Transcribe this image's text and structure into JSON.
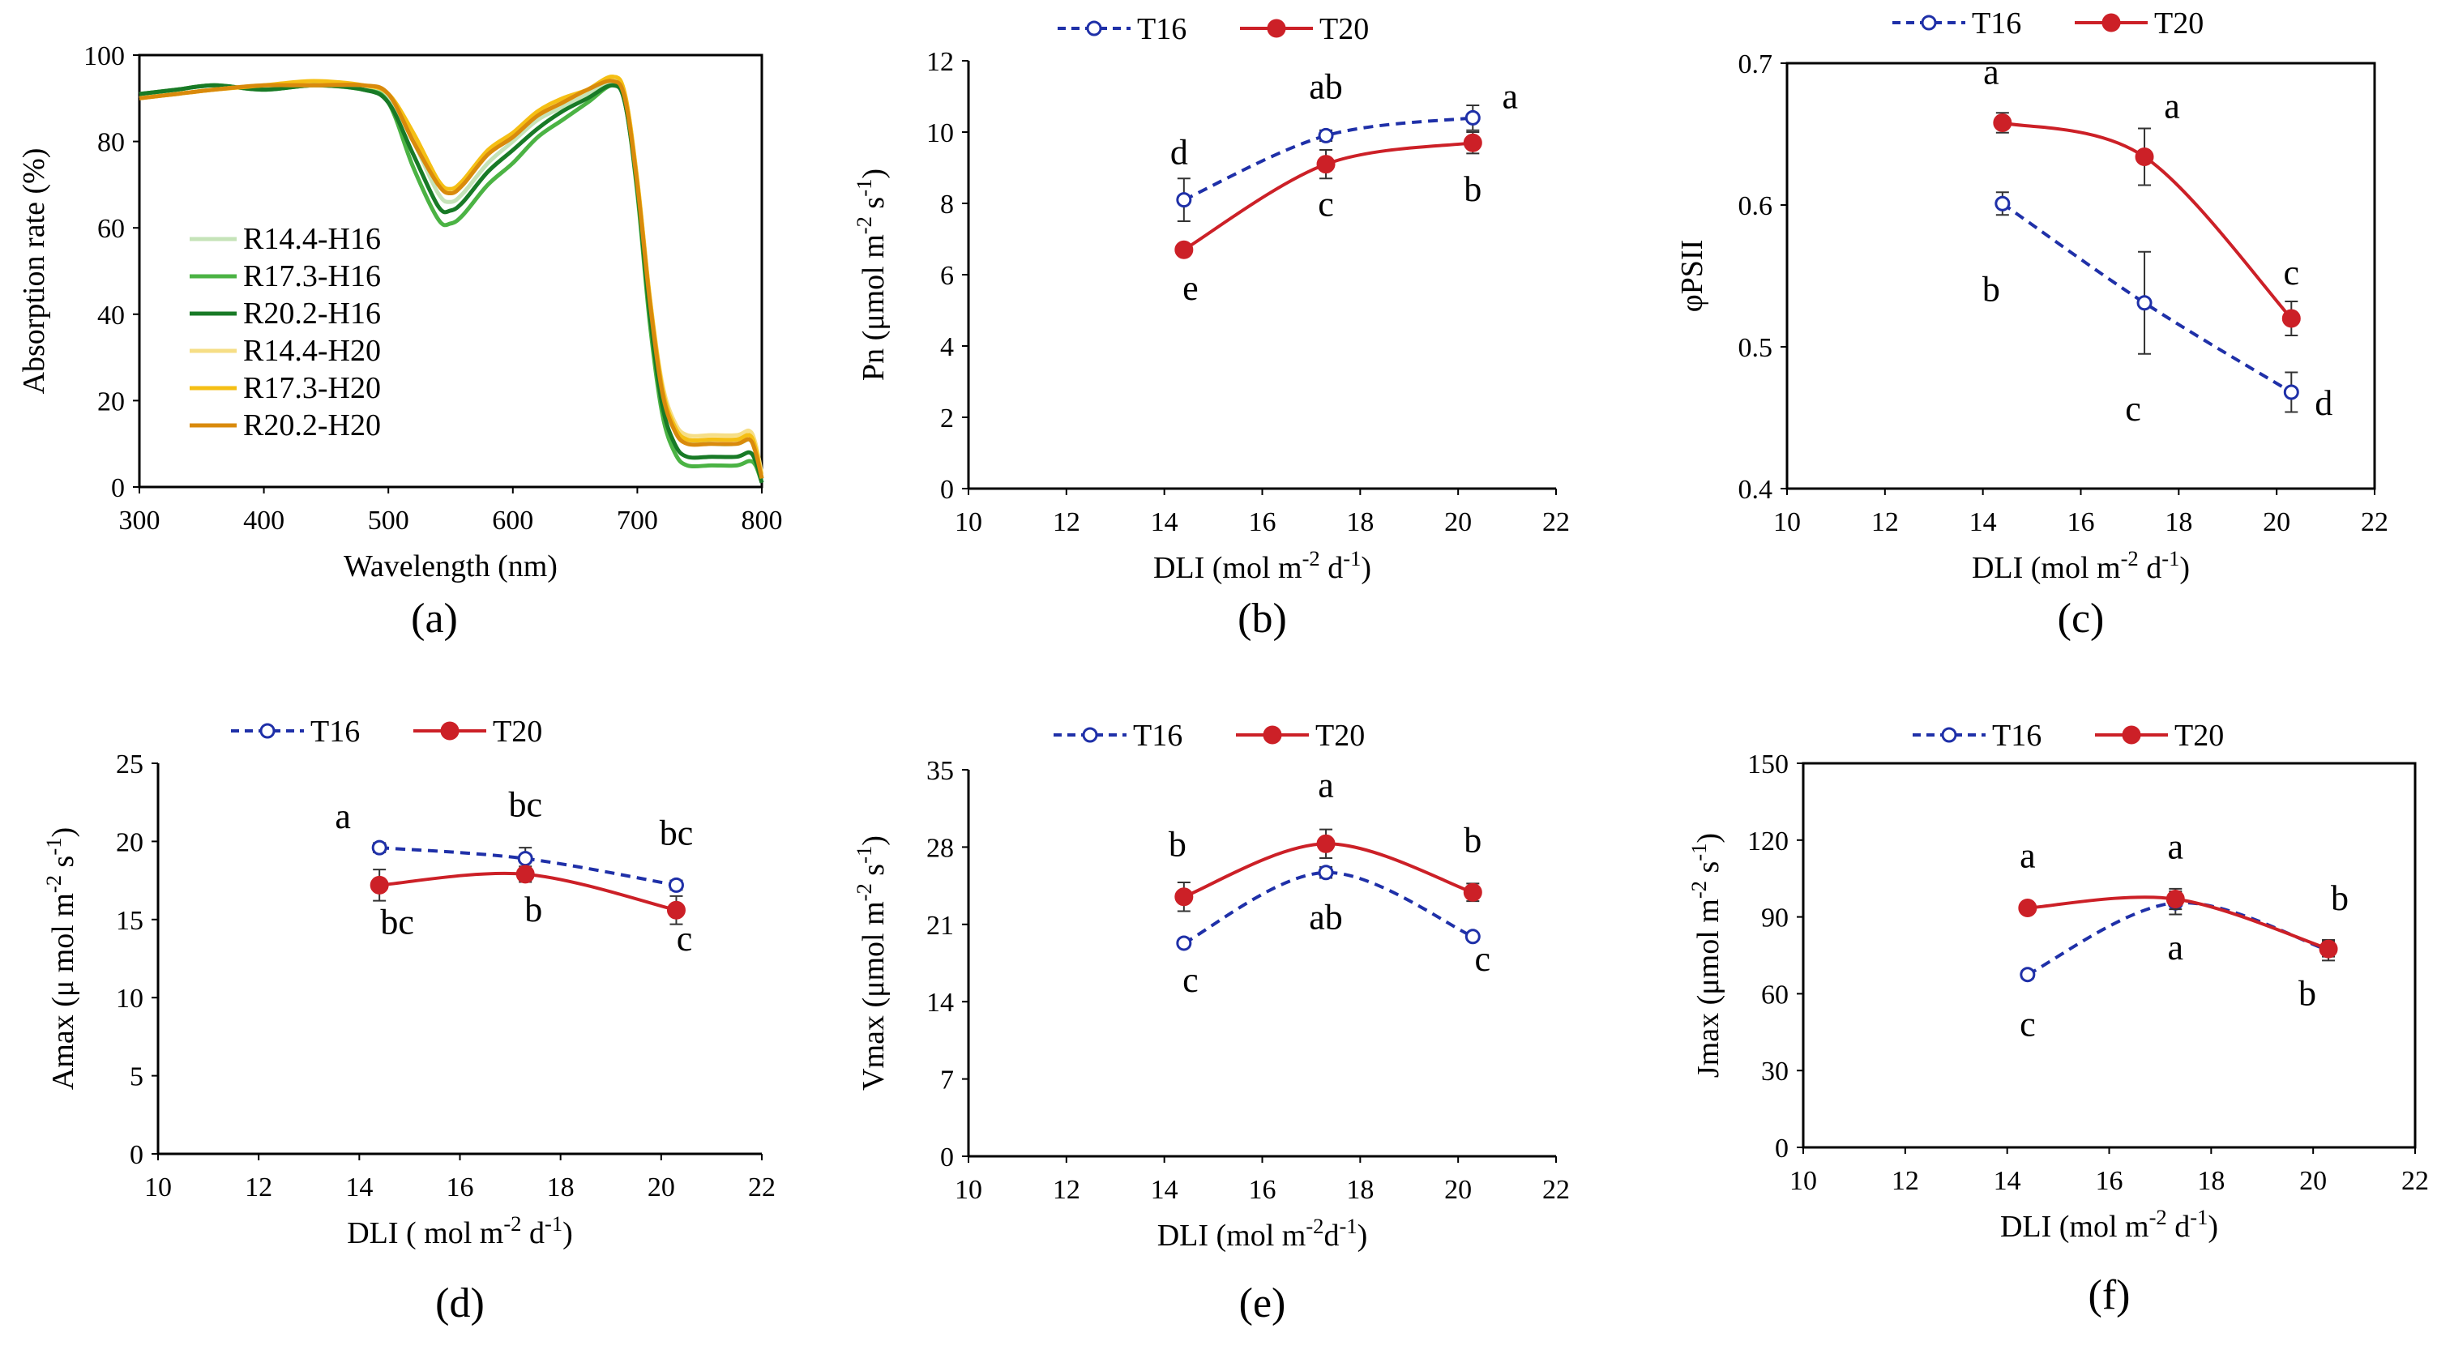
{
  "colors": {
    "t16": "#1f30a8",
    "t20": "#cc2027",
    "axis": "#000000",
    "spectra": [
      "#c5e3b8",
      "#4bb344",
      "#187a26",
      "#f6de86",
      "#f5bf14",
      "#d98a0c"
    ]
  },
  "chart_data": [
    {
      "id": "a",
      "type": "line",
      "panel_label": "(a)",
      "xlabel": "Wavelength (nm)",
      "ylabel": "Absorption rate (%)",
      "xlim": [
        300,
        800
      ],
      "ylim": [
        0,
        100
      ],
      "xticks": [
        300,
        400,
        500,
        600,
        700,
        800
      ],
      "yticks": [
        0,
        20,
        40,
        60,
        80,
        100
      ],
      "legend_position": "left-center",
      "x": [
        300,
        330,
        360,
        400,
        440,
        480,
        500,
        520,
        540,
        550,
        560,
        580,
        600,
        620,
        640,
        660,
        680,
        690,
        700,
        710,
        720,
        730,
        740,
        760,
        780,
        790,
        795,
        800
      ],
      "series": [
        {
          "name": "R14.4-H16",
          "values": [
            91,
            92,
            93,
            92,
            93,
            92,
            90,
            80,
            68,
            66,
            68,
            75,
            80,
            85,
            88,
            91,
            94,
            90,
            70,
            42,
            22,
            14,
            11,
            10,
            10,
            11,
            9,
            2
          ]
        },
        {
          "name": "R17.3-H16",
          "values": [
            91,
            92,
            93,
            92,
            93,
            92,
            89,
            74,
            62,
            61,
            63,
            70,
            75,
            81,
            85,
            89,
            93,
            89,
            68,
            38,
            17,
            8,
            5,
            5,
            5,
            6,
            5,
            1
          ]
        },
        {
          "name": "R20.2-H16",
          "values": [
            91,
            92,
            93,
            92,
            93,
            92,
            89,
            77,
            65,
            64,
            66,
            73,
            78,
            83,
            87,
            90,
            93,
            89,
            69,
            40,
            19,
            10,
            7,
            7,
            7,
            8,
            6,
            1
          ]
        },
        {
          "name": "R14.4-H20",
          "values": [
            90,
            91,
            92,
            93,
            93,
            93,
            91,
            82,
            71,
            69,
            71,
            78,
            82,
            86,
            89,
            92,
            95,
            91,
            71,
            44,
            24,
            15,
            12,
            12,
            12,
            13,
            10,
            3
          ]
        },
        {
          "name": "R17.3-H20",
          "values": [
            90,
            91,
            92,
            93,
            94,
            93,
            91,
            82,
            71,
            69,
            71,
            78,
            82,
            87,
            90,
            92,
            95,
            91,
            71,
            44,
            23,
            14,
            11,
            11,
            11,
            12,
            9,
            2
          ]
        },
        {
          "name": "R20.2-H20",
          "values": [
            90,
            91,
            92,
            93,
            93,
            93,
            91,
            80,
            70,
            68,
            70,
            77,
            81,
            86,
            89,
            92,
            94,
            90,
            70,
            43,
            22,
            13,
            10,
            10,
            10,
            11,
            8,
            2
          ]
        }
      ]
    },
    {
      "id": "b",
      "type": "line",
      "panel_label": "(b)",
      "xlabel": "DLI (mol m-2 d-1)",
      "ylabel": "Pn (μmol m-2 s-1)",
      "xlim": [
        10,
        22
      ],
      "ylim": [
        0,
        12
      ],
      "xticks": [
        10,
        12,
        14,
        16,
        18,
        20,
        22
      ],
      "yticks": [
        0,
        2,
        4,
        6,
        8,
        10,
        12
      ],
      "legend_position": "top",
      "x": [
        14.4,
        17.3,
        20.3
      ],
      "series": [
        {
          "name": "T16",
          "values": [
            8.1,
            9.9,
            10.4
          ],
          "errors": [
            0.6,
            0.15,
            0.35
          ],
          "labels": [
            "d",
            "ab",
            "a"
          ]
        },
        {
          "name": "T20",
          "values": [
            6.7,
            9.1,
            9.7
          ],
          "errors": [
            0.15,
            0.4,
            0.3
          ],
          "labels": [
            "e",
            "c",
            "b"
          ]
        }
      ]
    },
    {
      "id": "c",
      "type": "line",
      "panel_label": "(c)",
      "xlabel": "DLI (mol m-2 d-1)",
      "ylabel": "φPSII",
      "xlim": [
        10,
        22
      ],
      "ylim": [
        0.4,
        0.7
      ],
      "xticks": [
        10,
        12,
        14,
        16,
        18,
        20,
        22
      ],
      "yticks": [
        0.4,
        0.5,
        0.6,
        0.7
      ],
      "legend_position": "top",
      "x": [
        14.4,
        17.3,
        20.3
      ],
      "series": [
        {
          "name": "T16",
          "values": [
            0.601,
            0.531,
            0.468
          ],
          "errors": [
            0.008,
            0.036,
            0.014
          ],
          "labels": [
            "b",
            "c",
            "d"
          ]
        },
        {
          "name": "T20",
          "values": [
            0.658,
            0.634,
            0.52
          ],
          "errors": [
            0.007,
            0.02,
            0.012
          ],
          "labels": [
            "a",
            "a",
            "c"
          ]
        }
      ]
    },
    {
      "id": "d",
      "type": "line",
      "panel_label": "(d)",
      "xlabel": "DLI ( mol m-2 d-1)",
      "ylabel": "Amax (μ mol m-2 s-1)",
      "xlim": [
        10,
        22
      ],
      "ylim": [
        0,
        25
      ],
      "xticks": [
        10,
        12,
        14,
        16,
        18,
        20,
        22
      ],
      "yticks": [
        0,
        5,
        10,
        15,
        20,
        25
      ],
      "legend_position": "top",
      "x": [
        14.4,
        17.3,
        20.3
      ],
      "series": [
        {
          "name": "T16",
          "values": [
            19.6,
            18.9,
            17.2
          ],
          "errors": [
            0.3,
            0.7,
            0.3
          ],
          "labels": [
            "a",
            "bc",
            "bc"
          ]
        },
        {
          "name": "T20",
          "values": [
            17.2,
            17.9,
            15.6
          ],
          "errors": [
            1.0,
            0.5,
            0.9
          ],
          "labels": [
            "bc",
            "b",
            "c"
          ]
        }
      ]
    },
    {
      "id": "e",
      "type": "line",
      "panel_label": "(e)",
      "xlabel": "DLI (mol m-2d-1)",
      "ylabel": "Vmax (μmol m-2 s-1)",
      "xlim": [
        10,
        22
      ],
      "ylim": [
        0,
        35
      ],
      "xticks": [
        10,
        12,
        14,
        16,
        18,
        20,
        22
      ],
      "yticks": [
        0,
        7,
        14,
        21,
        28,
        35
      ],
      "legend_position": "top",
      "x": [
        14.4,
        17.3,
        20.3
      ],
      "series": [
        {
          "name": "T16",
          "values": [
            19.3,
            25.7,
            19.9
          ],
          "errors": [
            0.3,
            0.5,
            0.3
          ],
          "labels": [
            "c",
            "ab",
            "c"
          ]
        },
        {
          "name": "T20",
          "values": [
            23.5,
            28.3,
            23.9
          ],
          "errors": [
            1.3,
            1.3,
            0.8
          ],
          "labels": [
            "b",
            "a",
            "b"
          ]
        }
      ]
    },
    {
      "id": "f",
      "type": "line",
      "panel_label": "(f)",
      "xlabel": "DLI (mol m-2 d-1)",
      "ylabel": "Jmax (μmol m-2 s-1)",
      "xlim": [
        10,
        22
      ],
      "ylim": [
        0,
        150
      ],
      "xticks": [
        10,
        12,
        14,
        16,
        18,
        20,
        22
      ],
      "yticks": [
        0,
        30,
        60,
        90,
        120,
        150
      ],
      "legend_position": "top",
      "x": [
        14.4,
        17.3,
        20.3
      ],
      "series": [
        {
          "name": "T16",
          "values": [
            67.5,
            95.5,
            77
          ],
          "errors": [
            1.5,
            4.5,
            4
          ],
          "labels": [
            "c",
            "a",
            "b"
          ]
        },
        {
          "name": "T20",
          "values": [
            93.5,
            97,
            77.5
          ],
          "errors": [
            1.5,
            4,
            3
          ],
          "labels": [
            "a",
            "a",
            "b"
          ]
        }
      ]
    }
  ]
}
